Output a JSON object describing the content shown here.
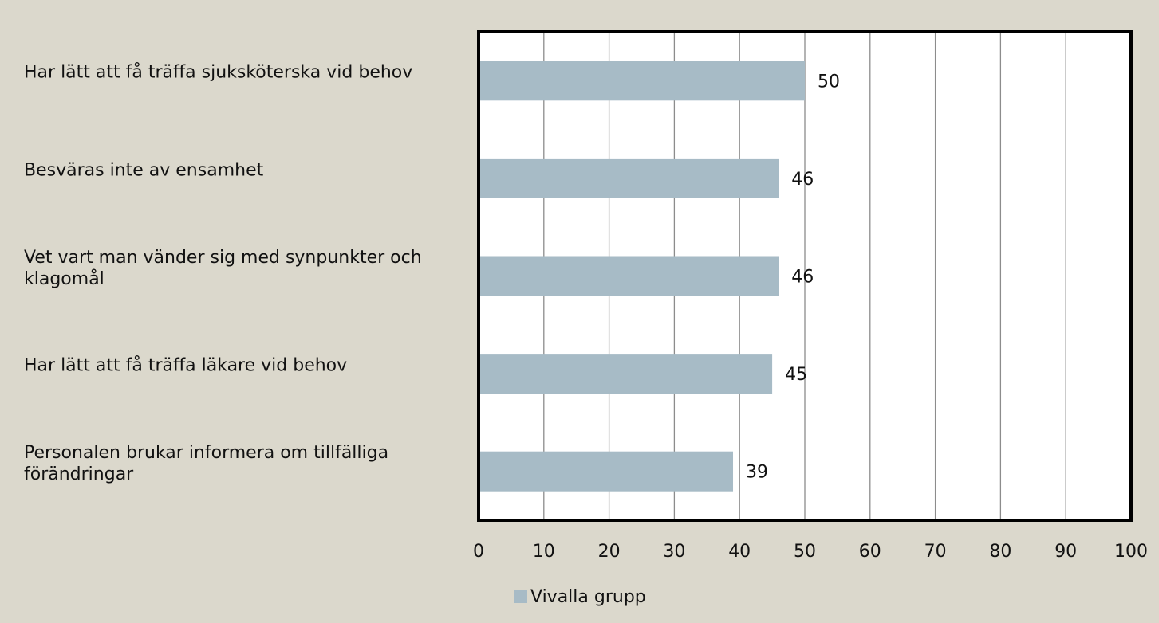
{
  "chart_data": {
    "type": "bar",
    "orientation": "horizontal",
    "categories": [
      "Har lätt att få träffa sjuksköterska vid behov",
      "Besväras inte av ensamhet",
      "Vet vart man vänder sig med synpunkter och klagomål",
      "Har lätt att få träffa läkare vid behov",
      "Personalen brukar informera om tillfälliga förändringar"
    ],
    "series": [
      {
        "name": "Vivalla grupp",
        "color": "#a7bbc6",
        "values": [
          50,
          46,
          46,
          45,
          39
        ]
      }
    ],
    "xlim": [
      0,
      100
    ],
    "xticks": [
      0,
      10,
      20,
      30,
      40,
      50,
      60,
      70,
      80,
      90,
      100
    ],
    "grid": true,
    "legend": "bottom"
  }
}
